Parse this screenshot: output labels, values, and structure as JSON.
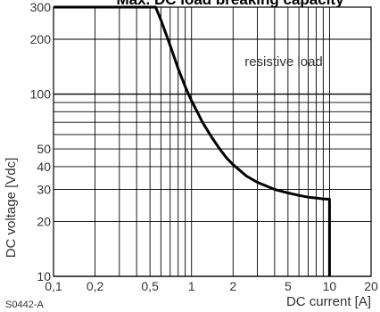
{
  "chart_data": {
    "type": "line",
    "title": "Max. DC load breaking capacity",
    "xlabel": "DC current [A]",
    "ylabel": "DC voltage [Vdc]",
    "x_scale": "log",
    "y_scale": "log",
    "xlim": [
      0.1,
      20
    ],
    "ylim": [
      10,
      300
    ],
    "x_ticks": [
      0.1,
      0.2,
      0.5,
      1,
      2,
      5,
      10,
      20
    ],
    "x_tick_labels": [
      "0,1",
      "0,2",
      "0,5",
      "1",
      "2",
      "5",
      "10",
      "20"
    ],
    "y_ticks": [
      10,
      20,
      30,
      40,
      50,
      100,
      200,
      300
    ],
    "y_tick_labels": [
      "10",
      "20",
      "30",
      "40",
      "50",
      "100",
      "200",
      "300"
    ],
    "grid": true,
    "annotation": "resistive load",
    "code": "S0442-A",
    "series": [
      {
        "x": [
          0.1,
          0.55,
          0.6,
          0.7,
          0.8,
          0.9,
          1.0,
          1.1,
          1.2,
          1.4,
          1.6,
          1.8,
          2.0,
          2.5,
          3.0,
          4.0,
          5.0,
          6.0,
          7.0,
          8.0,
          9.0,
          10.0,
          10.0
        ],
        "y": [
          300,
          300,
          255,
          185,
          138,
          110,
          92,
          80,
          70,
          58,
          50,
          44.5,
          41,
          35.5,
          32.8,
          30,
          28.7,
          27.8,
          27.2,
          26.9,
          26.6,
          26.5,
          10
        ]
      }
    ]
  }
}
